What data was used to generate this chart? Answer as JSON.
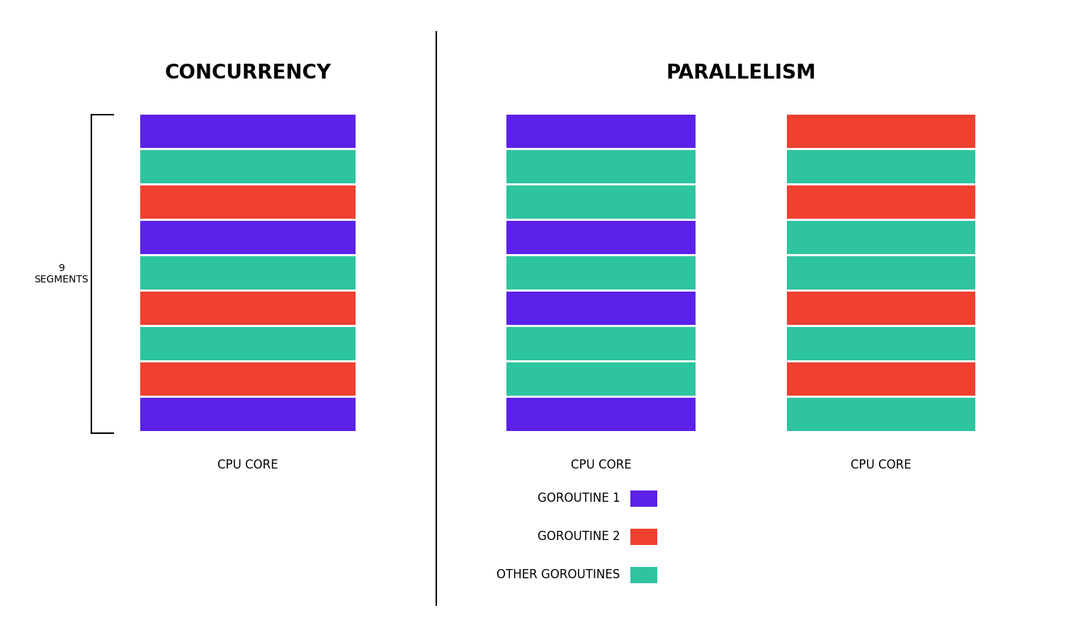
{
  "colors": {
    "goroutine1": "#5B21E8",
    "goroutine2": "#F04030",
    "other": "#2EC4A0"
  },
  "concurrency_segments": [
    "goroutine1",
    "other",
    "goroutine2",
    "goroutine1",
    "other",
    "goroutine2",
    "other",
    "goroutine2",
    "goroutine1"
  ],
  "parallelism_left_segments": [
    "goroutine1",
    "other",
    "other",
    "goroutine1",
    "other",
    "goroutine1",
    "other",
    "other",
    "goroutine1"
  ],
  "parallelism_right_segments": [
    "goroutine2",
    "other",
    "goroutine2",
    "other",
    "other",
    "goroutine2",
    "other",
    "goroutine2",
    "other"
  ],
  "concurrency_title": "CONCURRENCY",
  "parallelism_title": "PARALLELISM",
  "cpu_core_label": "CPU CORE",
  "segments_label": "9\nSEGMENTS",
  "legend_items": [
    {
      "label": "GOROUTINE 1",
      "color": "#5B21E8"
    },
    {
      "label": "GOROUTINE 2",
      "color": "#F04030"
    },
    {
      "label": "OTHER GOROUTINES",
      "color": "#2EC4A0"
    }
  ],
  "background_color": "#FFFFFF",
  "bar_gap": 0.003,
  "title_fontsize": 20,
  "label_fontsize": 12,
  "legend_fontsize": 12
}
